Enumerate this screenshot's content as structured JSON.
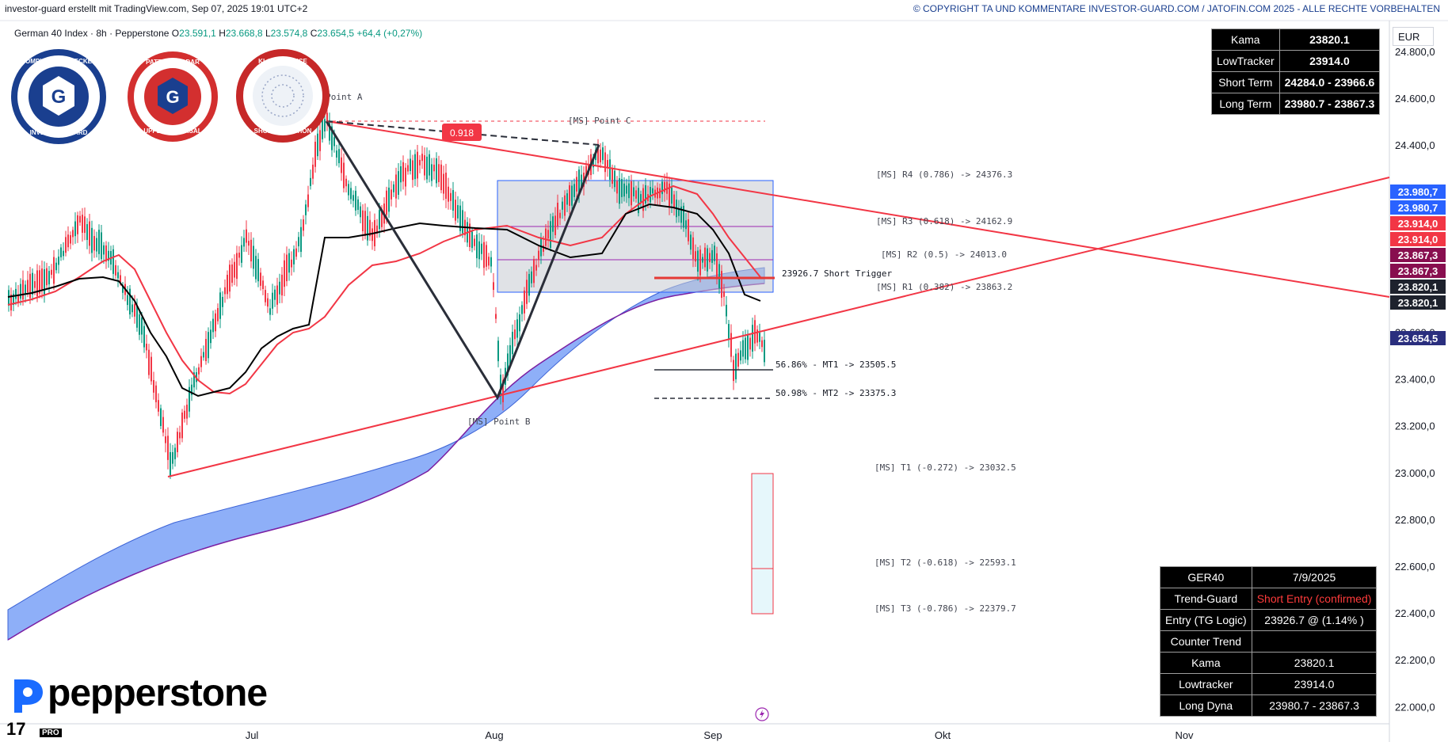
{
  "header": {
    "left": "investor-guard erstellt mit TradingView.com, Sep 07, 2025 19:01 UTC+2",
    "right": "© COPYRIGHT TA UND KOMMENTARE INVESTOR-GUARD.COM / JATOFIN.COM 2025 - ALLE RECHTE VORBEHALTEN"
  },
  "symbol": {
    "name": "German 40 Index · 8h · Pepperstone",
    "o_label": "O",
    "o": "23.591,1",
    "h_label": "H",
    "h": "23.668,8",
    "l_label": "L",
    "l": "23.574,8",
    "c_label": "C",
    "c": "23.654,5",
    "chg": "+64,4 (+0,27%)"
  },
  "currency": "EUR",
  "badges": {
    "b1_top": "COMPLIANCE CHECKED",
    "b1_bottom": "INVESTOR-GUARD",
    "b2_top": "PATTERN RADAR",
    "b2_bottom": "UPPER REVERSAL",
    "b3_top": "KI-ASSISTANCE",
    "b3_bottom": "SHORT SITUATION",
    "center_letter": "G"
  },
  "top_table": [
    {
      "label": "Kama",
      "value": "23820.1"
    },
    {
      "label": "LowTracker",
      "value": "23914.0"
    },
    {
      "label": "Short Term",
      "value": "24284.0 - 23966.6"
    },
    {
      "label": "Long Term",
      "value": "23980.7 - 23867.3"
    }
  ],
  "bottom_table": [
    {
      "label": "GER40",
      "value": "7/9/2025",
      "red": false
    },
    {
      "label": "Trend-Guard",
      "value": "Short Entry (confirmed)",
      "red": true
    },
    {
      "label": "Entry (TG Logic)",
      "value": "23926.7 @ (1.14% )",
      "red": false
    },
    {
      "label": "Counter Trend",
      "value": "",
      "red": false
    },
    {
      "label": "Kama",
      "value": "23820.1",
      "red": false
    },
    {
      "label": "Lowtracker",
      "value": "23914.0",
      "red": false
    },
    {
      "label": "Long Dyna",
      "value": "23980.7 - 23867.3",
      "red": false
    }
  ],
  "brand": {
    "logo": "pepperstone",
    "tv": "17",
    "pro": "PRO"
  },
  "colors": {
    "up": "#089981",
    "down": "#f23645",
    "red_line": "#f23645",
    "cloud": "#5b8cf5",
    "kama": "#000000",
    "box": "#d6d8de",
    "header_right": "#1a3f8f"
  },
  "chart_data": {
    "type": "candlestick",
    "title": "German 40 Index · 8h · Pepperstone",
    "x_ticks": [
      "Jul",
      "Aug",
      "Sep",
      "Okt",
      "Nov"
    ],
    "y_ticks": [
      "24.800,0",
      "24.600,0",
      "24.400,0",
      "24.200,0",
      "24.000,0",
      "23.800,0",
      "23.600,0",
      "23.400,0",
      "23.200,0",
      "23.000,0",
      "22.800,0",
      "22.600,0",
      "22.400,0",
      "22.200,0",
      "22.000,0"
    ],
    "y_tick_values": [
      24800,
      24600,
      24400,
      24200,
      24000,
      23800,
      23600,
      23400,
      23200,
      23000,
      22800,
      22600,
      22400,
      22200,
      22000
    ],
    "ylim": [
      21930,
      24935
    ],
    "price_labels": [
      {
        "text": "23.980,7",
        "value": 23980.7,
        "color": "#2962ff"
      },
      {
        "text": "23.980,7",
        "value": 23980.7,
        "color": "#2962ff"
      },
      {
        "text": "23.914,0",
        "value": 23914.0,
        "color": "#f23645"
      },
      {
        "text": "23.914,0",
        "value": 23914.0,
        "color": "#f23645"
      },
      {
        "text": "23.867,3",
        "value": 23867.3,
        "color": "#880e4f"
      },
      {
        "text": "23.867,3",
        "value": 23867.3,
        "color": "#880e4f"
      },
      {
        "text": "23.820,1",
        "value": 23820.1,
        "color": "#1e222d"
      },
      {
        "text": "23.820,1",
        "value": 23820.1,
        "color": "#1e222d"
      },
      {
        "text": "23.654,5",
        "value": 23654.5,
        "color": "#2a2e7e"
      }
    ],
    "levels": [
      {
        "text": "[MS] R4 (0.786) -> 24376.3",
        "value": 24376.3
      },
      {
        "text": "[MS] R3 (0.618) -> 24162.9",
        "value": 24162.9
      },
      {
        "text": "[MS] R2 (0.5) -> 24013.0",
        "value": 24013.0
      },
      {
        "text": "[MS] R1 (0.382) -> 23863.2",
        "value": 23863.2
      },
      {
        "text": "[MS] T1 (-0.272) -> 23032.5",
        "value": 23032.5
      },
      {
        "text": "[MS] T2 (-0.618) -> 22593.1",
        "value": 22593.1
      },
      {
        "text": "[MS] T3 (-0.786) -> 22379.7",
        "value": 22379.7
      }
    ],
    "mt_levels": [
      {
        "text": "56.86% - MT1  -> 23505.5",
        "value": 23505.5
      },
      {
        "text": "50.98% - MT2  -> 23375.3",
        "value": 23375.3
      }
    ],
    "short_trigger": {
      "text": "23926.7  Short Trigger",
      "value": 23926.7
    },
    "points": [
      {
        "text": "[MS] Point A",
        "value": 24650
      },
      {
        "text": "[MS] Point B",
        "value": 23380
      },
      {
        "text": "[MS] Point C",
        "value": 24520
      }
    ],
    "fib_label": "0.918"
  }
}
